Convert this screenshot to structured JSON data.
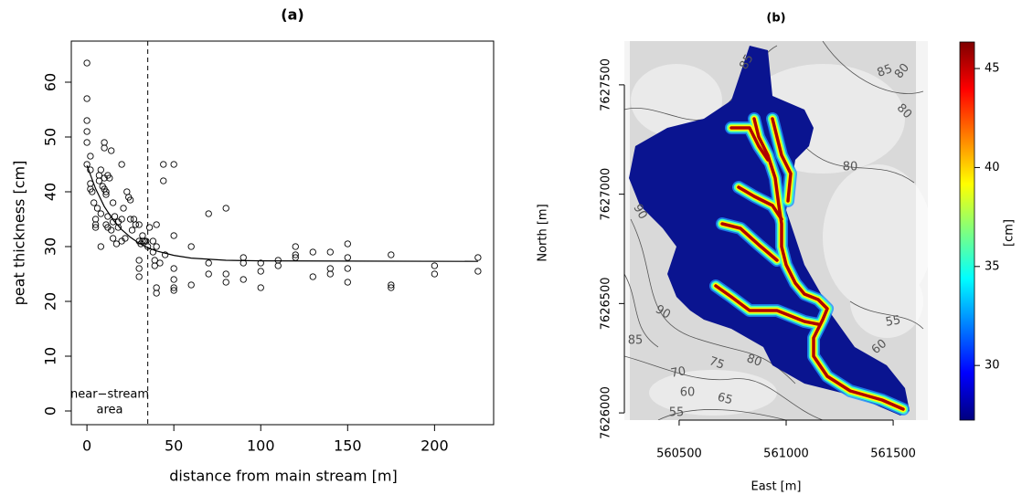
{
  "chart_data": [
    {
      "type": "scatter",
      "title": "(a)",
      "x_label": "distance from main stream [m]",
      "y_label": "peat thickness [cm]",
      "xlim": [
        -9,
        234
      ],
      "ylim": [
        -2.5,
        67.5
      ],
      "xticks": [
        0,
        50,
        100,
        150,
        200
      ],
      "yticks": [
        0,
        10,
        20,
        30,
        40,
        50,
        60
      ],
      "x": [
        0,
        0,
        0,
        0,
        0,
        0,
        2,
        2,
        2,
        2,
        3,
        4,
        5,
        5,
        5,
        6,
        7,
        7,
        8,
        8,
        8,
        9,
        10,
        10,
        10,
        10,
        11,
        11,
        11,
        12,
        12,
        12,
        13,
        14,
        14,
        15,
        15,
        15,
        16,
        17,
        18,
        18,
        20,
        20,
        20,
        21,
        22,
        23,
        24,
        25,
        25,
        26,
        27,
        28,
        30,
        30,
        30,
        30,
        30,
        31,
        32,
        32,
        33,
        34,
        35,
        36,
        38,
        38,
        39,
        39,
        40,
        40,
        40,
        40,
        42,
        44,
        44,
        45,
        50,
        50,
        50,
        50,
        50,
        50,
        60,
        60,
        70,
        70,
        70,
        80,
        80,
        80,
        90,
        90,
        90,
        100,
        100,
        100,
        110,
        110,
        120,
        120,
        120,
        130,
        130,
        140,
        140,
        140,
        150,
        150,
        150,
        150,
        175,
        175,
        175,
        200,
        200,
        225,
        225
      ],
      "values": [
        63.5,
        57,
        53,
        51,
        49,
        45,
        46.5,
        44,
        41.5,
        40.5,
        40,
        38,
        35,
        34,
        33.5,
        37,
        43,
        42,
        44,
        30,
        36,
        41,
        40.5,
        42.5,
        48,
        49,
        39.5,
        40,
        34,
        33.5,
        35.5,
        43,
        42.5,
        47.5,
        33,
        31.5,
        34.5,
        38,
        35.5,
        30.5,
        33.5,
        34.5,
        35,
        45,
        31,
        37,
        31.5,
        40,
        39,
        38.5,
        35,
        33,
        35,
        34,
        34,
        31,
        27.5,
        26,
        24.5,
        30.5,
        32,
        31,
        31,
        31,
        30,
        33.5,
        31,
        29,
        27.5,
        26.5,
        34,
        22.5,
        21.5,
        30,
        27,
        45,
        42,
        28.5,
        45,
        32,
        26,
        24,
        22.5,
        22,
        30,
        23,
        36,
        27,
        25,
        37,
        25,
        23.5,
        28,
        27,
        24,
        27,
        25.5,
        22.5,
        27.5,
        26.5,
        30,
        28.5,
        28,
        29,
        24.5,
        29,
        26,
        25,
        30.5,
        28,
        26,
        23.5,
        28.5,
        23,
        22.5,
        26.5,
        25,
        28,
        25.5
      ],
      "fit": {
        "x": [
          0,
          5,
          10,
          15,
          20,
          25,
          30,
          35,
          40,
          50,
          60,
          80,
          100,
          225
        ],
        "values": [
          44.8,
          40.55,
          37.3,
          34.9,
          33.1,
          31.7,
          30.6,
          29.8,
          29.2,
          28.4,
          27.9,
          27.5,
          27.4,
          27.3
        ]
      },
      "vline": 35,
      "annotation": [
        "near−stream",
        "area"
      ]
    },
    {
      "type": "map",
      "title": "(b)",
      "x_label": "East [m]",
      "y_label": "North [m]",
      "xlim": [
        560244,
        561662
      ],
      "ylim": [
        7625967,
        7627700
      ],
      "xticks": [
        560500,
        561000,
        561500
      ],
      "yticks": [
        7626000,
        7626500,
        7627000,
        7627500
      ],
      "colorbar_label": "[cm]",
      "clim": [
        27.24,
        46.34
      ],
      "cticks": [
        30,
        35,
        40,
        45
      ],
      "colormap": [
        "#00007f",
        "#0000ff",
        "#007fff",
        "#00ffff",
        "#7fff7f",
        "#ffff00",
        "#ff7f00",
        "#ff0000",
        "#7f0000"
      ],
      "catchment_color": "#0a1490",
      "stream_colors": [
        "#1e90ff",
        "#40ffc0",
        "#ffff00",
        "#b00000"
      ],
      "contour_labels": [
        "85",
        "85",
        "80",
        "80",
        "80",
        "90",
        "90",
        "85",
        "70",
        "75",
        "80",
        "60",
        "65",
        "55",
        "55",
        "60"
      ]
    }
  ]
}
